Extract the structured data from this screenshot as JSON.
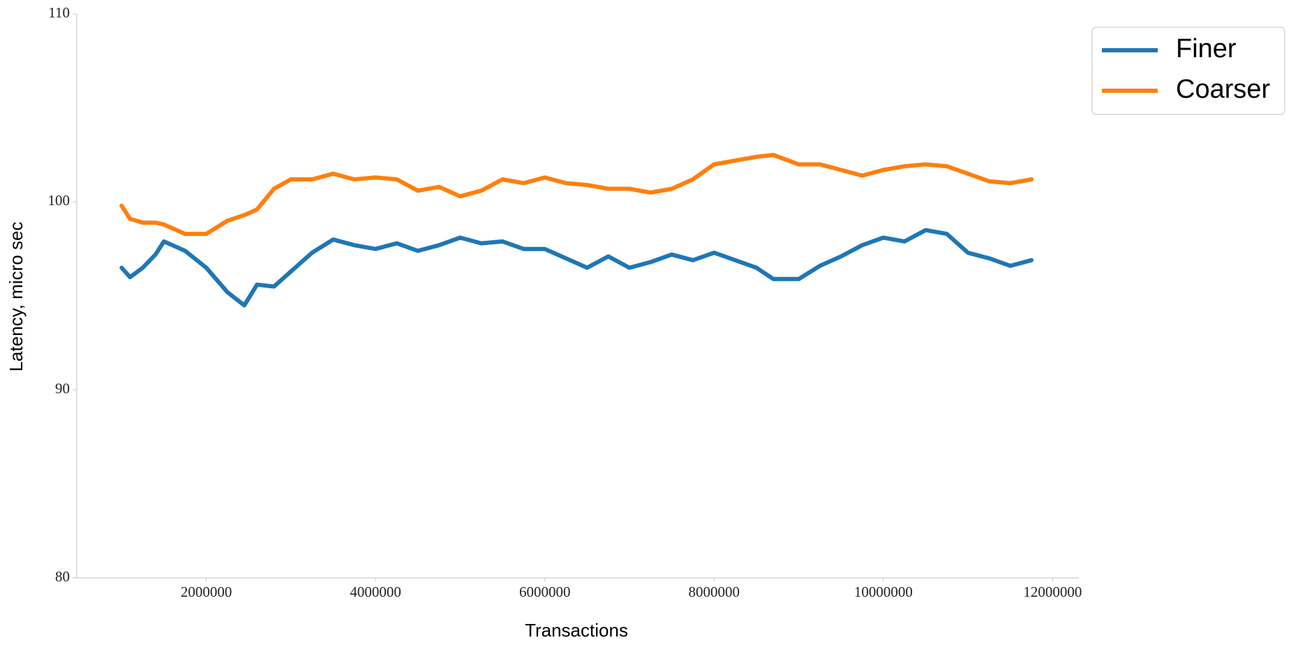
{
  "chart_data": {
    "type": "line",
    "xlabel": "Transactions",
    "ylabel": "Latency, micro sec",
    "x": [
      1000000,
      1100000,
      1250000,
      1400000,
      1500000,
      1750000,
      2000000,
      2250000,
      2450000,
      2600000,
      2800000,
      3000000,
      3250000,
      3500000,
      3750000,
      4000000,
      4250000,
      4500000,
      4750000,
      5000000,
      5250000,
      5500000,
      5750000,
      6000000,
      6250000,
      6500000,
      6750000,
      7000000,
      7250000,
      7500000,
      7750000,
      8000000,
      8250000,
      8500000,
      8700000,
      9000000,
      9250000,
      9500000,
      9750000,
      10000000,
      10250000,
      10500000,
      10750000,
      11000000,
      11250000,
      11500000,
      11750000
    ],
    "series": [
      {
        "name": "Finer",
        "color": "#1f77b4",
        "values": [
          96.5,
          96.0,
          96.5,
          97.2,
          97.9,
          97.4,
          96.5,
          95.2,
          94.5,
          95.6,
          95.5,
          96.3,
          97.3,
          98.0,
          97.7,
          97.5,
          97.8,
          97.4,
          97.7,
          98.1,
          97.8,
          97.9,
          97.5,
          97.5,
          97.0,
          96.5,
          97.1,
          96.5,
          96.8,
          97.2,
          96.9,
          97.3,
          96.9,
          96.5,
          95.9,
          95.9,
          96.6,
          97.1,
          97.7,
          98.1,
          97.9,
          98.5,
          98.3,
          97.3,
          97.0,
          96.6,
          96.9
        ]
      },
      {
        "name": "Coarser",
        "color": "#ff7f0e",
        "values": [
          99.8,
          99.1,
          98.9,
          98.9,
          98.8,
          98.3,
          98.3,
          99.0,
          99.3,
          99.6,
          100.7,
          101.2,
          101.2,
          101.5,
          101.2,
          101.3,
          101.2,
          100.6,
          100.8,
          100.3,
          100.6,
          101.2,
          101.0,
          101.3,
          101.0,
          100.9,
          100.7,
          100.7,
          100.5,
          100.7,
          101.2,
          102.0,
          102.2,
          102.4,
          102.5,
          102.0,
          102.0,
          101.7,
          101.4,
          101.7,
          101.9,
          102.0,
          101.9,
          101.5,
          101.1,
          101.0,
          101.2
        ]
      }
    ],
    "xlim": [
      470000,
      12310000
    ],
    "xticks": [
      2000000,
      4000000,
      6000000,
      8000000,
      10000000,
      12000000
    ],
    "ylim": [
      80,
      110
    ],
    "yticks": [
      80,
      90,
      100,
      110
    ],
    "grid": false,
    "legend": "outside upper right"
  }
}
